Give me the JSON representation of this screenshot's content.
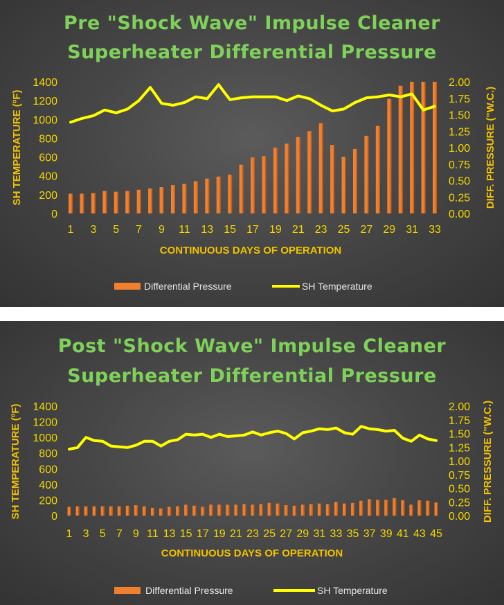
{
  "chart_data": [
    {
      "type": "bar+line",
      "title_line1": "Pre \"Shock Wave\" Impulse Cleaner",
      "title_line2": "Superheater Differential Pressure",
      "xlabel": "CONTINUOUS DAYS OF OPERATION",
      "ylabel_left": "SH TEMPERATURE (ºF)",
      "ylabel_right": "DIFF. PRESSURE (\"W.C.)",
      "ylim_left": [
        0,
        1400
      ],
      "ylim_right": [
        0,
        2.0
      ],
      "yticks_left": [
        "0",
        "200",
        "400",
        "600",
        "800",
        "1000",
        "1200",
        "1400"
      ],
      "yticks_right": [
        "0.00",
        "0.25",
        "0.50",
        "0.75",
        "1.00",
        "1.25",
        "1.50",
        "1.75",
        "2.00"
      ],
      "x_tick_labels": [
        "1",
        "3",
        "5",
        "7",
        "9",
        "11",
        "13",
        "15",
        "17",
        "19",
        "21",
        "23",
        "25",
        "27",
        "29",
        "31",
        "33"
      ],
      "x": [
        1,
        2,
        3,
        4,
        5,
        6,
        7,
        8,
        9,
        10,
        11,
        12,
        13,
        14,
        15,
        16,
        17,
        18,
        19,
        20,
        21,
        22,
        23,
        24,
        25,
        26,
        27,
        28,
        29,
        30,
        31,
        32,
        33
      ],
      "series": [
        {
          "name": "Differential Pressure",
          "kind": "bar",
          "axis": "right",
          "values": [
            0.3,
            0.3,
            0.31,
            0.34,
            0.33,
            0.34,
            0.36,
            0.38,
            0.4,
            0.43,
            0.45,
            0.49,
            0.53,
            0.56,
            0.59,
            0.74,
            0.85,
            0.87,
            1.0,
            1.06,
            1.16,
            1.25,
            1.37,
            1.04,
            0.86,
            0.98,
            1.18,
            1.33,
            1.74,
            1.94,
            2.0,
            2.0,
            2.0
          ]
        },
        {
          "name": "SH Temperature",
          "kind": "line",
          "axis": "left",
          "values": [
            970,
            1010,
            1040,
            1100,
            1070,
            1110,
            1200,
            1340,
            1170,
            1150,
            1180,
            1240,
            1220,
            1370,
            1210,
            1230,
            1240,
            1240,
            1240,
            1200,
            1250,
            1220,
            1150,
            1090,
            1110,
            1180,
            1230,
            1240,
            1260,
            1240,
            1270,
            1100,
            1140
          ]
        }
      ],
      "legend_position": "bottom"
    },
    {
      "type": "bar+line",
      "title_line1": "Post \"Shock Wave\" Impulse Cleaner",
      "title_line2": "Superheater Differential Pressure",
      "xlabel": "CONTINUOUS DAYS OF OPERATION",
      "ylabel_left": "SH TEMPERATURE (ºF)",
      "ylabel_right": "DIFF. PRESSURE (\"W.C.)",
      "ylim_left": [
        0,
        1400
      ],
      "ylim_right": [
        0,
        2.0
      ],
      "yticks_left": [
        "0",
        "200",
        "400",
        "600",
        "800",
        "1000",
        "1200",
        "1400"
      ],
      "yticks_right": [
        "0.00",
        "0.25",
        "0.50",
        "0.75",
        "1.00",
        "1.25",
        "1.50",
        "1.75",
        "2.00"
      ],
      "x_tick_labels": [
        "1",
        "3",
        "5",
        "7",
        "9",
        "11",
        "13",
        "15",
        "17",
        "19",
        "21",
        "23",
        "25",
        "27",
        "29",
        "31",
        "33",
        "35",
        "37",
        "39",
        "41",
        "43",
        "45"
      ],
      "x": [
        1,
        2,
        3,
        4,
        5,
        6,
        7,
        8,
        9,
        10,
        11,
        12,
        13,
        14,
        15,
        16,
        17,
        18,
        19,
        20,
        21,
        22,
        23,
        24,
        25,
        26,
        27,
        28,
        29,
        30,
        31,
        32,
        33,
        34,
        35,
        36,
        37,
        38,
        39,
        40,
        41,
        42,
        43,
        44,
        45
      ],
      "series": [
        {
          "name": "Differential Pressure",
          "kind": "bar",
          "axis": "right",
          "values": [
            0.16,
            0.17,
            0.17,
            0.17,
            0.17,
            0.17,
            0.17,
            0.18,
            0.19,
            0.17,
            0.14,
            0.13,
            0.16,
            0.17,
            0.2,
            0.18,
            0.16,
            0.2,
            0.2,
            0.2,
            0.2,
            0.21,
            0.2,
            0.21,
            0.23,
            0.22,
            0.19,
            0.18,
            0.2,
            0.21,
            0.22,
            0.21,
            0.25,
            0.22,
            0.23,
            0.27,
            0.3,
            0.29,
            0.29,
            0.32,
            0.28,
            0.2,
            0.28,
            0.27,
            0.24
          ]
        },
        {
          "name": "SH Temperature",
          "kind": "line",
          "axis": "left",
          "values": [
            850,
            870,
            1000,
            960,
            950,
            890,
            880,
            870,
            900,
            950,
            950,
            890,
            950,
            970,
            1040,
            1030,
            1040,
            1000,
            1040,
            1010,
            1020,
            1030,
            1070,
            1030,
            1060,
            1080,
            1050,
            980,
            1060,
            1080,
            1110,
            1100,
            1120,
            1060,
            1040,
            1140,
            1110,
            1100,
            1080,
            1090,
            990,
            950,
            1030,
            980,
            960
          ]
        }
      ],
      "legend_position": "bottom"
    }
  ],
  "colors": {
    "bar": "#f07f2e",
    "bar_dark": "#c85a12",
    "line": "#ffff00",
    "title": "#7fd15a",
    "tick": "#f2d600",
    "axis_title": "#f2c200",
    "legend_text": "#e8e8e8"
  }
}
